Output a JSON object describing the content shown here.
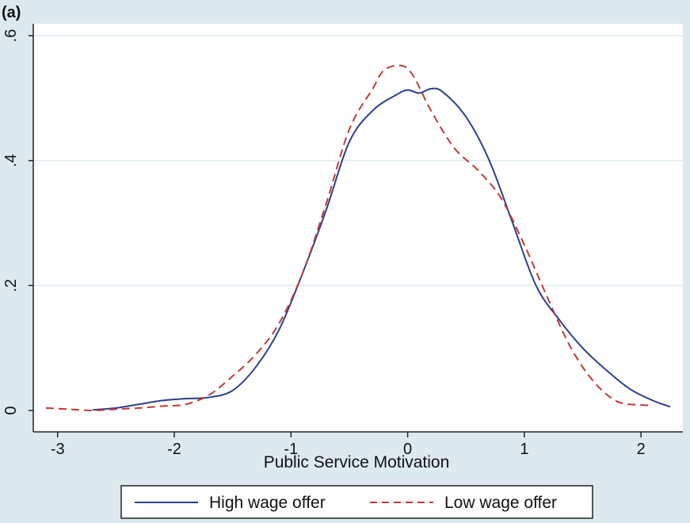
{
  "panel_label": "(a)",
  "chart_data": {
    "type": "line",
    "title": "",
    "xlabel": "Public Service Motivation",
    "ylabel": "",
    "xlim": [
      -3.1,
      2.25
    ],
    "ylim": [
      0,
      0.6
    ],
    "x_ticks": [
      -3,
      -2,
      -1,
      0,
      1,
      2
    ],
    "x_tick_labels": [
      "-3",
      "-2",
      "-1",
      "0",
      "1",
      "2"
    ],
    "y_ticks": [
      0,
      0.2,
      0.4,
      0.6
    ],
    "y_tick_labels": [
      "0",
      ".2",
      ".4",
      ".6"
    ],
    "grid": "horizontal",
    "legend_position": "bottom",
    "series": [
      {
        "name": "High wage offer",
        "color": "#2e3f8f",
        "style": "solid",
        "points": [
          [
            -2.7,
            0.001
          ],
          [
            -2.5,
            0.004
          ],
          [
            -2.3,
            0.01
          ],
          [
            -2.1,
            0.016
          ],
          [
            -1.9,
            0.019
          ],
          [
            -1.7,
            0.021
          ],
          [
            -1.5,
            0.032
          ],
          [
            -1.3,
            0.07
          ],
          [
            -1.1,
            0.13
          ],
          [
            -0.9,
            0.22
          ],
          [
            -0.7,
            0.32
          ],
          [
            -0.5,
            0.43
          ],
          [
            -0.3,
            0.48
          ],
          [
            -0.1,
            0.505
          ],
          [
            0.0,
            0.513
          ],
          [
            0.1,
            0.508
          ],
          [
            0.2,
            0.515
          ],
          [
            0.3,
            0.51
          ],
          [
            0.5,
            0.47
          ],
          [
            0.7,
            0.4
          ],
          [
            0.9,
            0.3
          ],
          [
            1.1,
            0.2
          ],
          [
            1.3,
            0.145
          ],
          [
            1.5,
            0.1
          ],
          [
            1.7,
            0.065
          ],
          [
            1.9,
            0.035
          ],
          [
            2.1,
            0.016
          ],
          [
            2.25,
            0.006
          ]
        ]
      },
      {
        "name": "Low wage offer",
        "color": "#c23a35",
        "style": "dashed",
        "points": [
          [
            -3.1,
            0.004
          ],
          [
            -2.9,
            0.002
          ],
          [
            -2.7,
            0.0
          ],
          [
            -2.5,
            0.002
          ],
          [
            -2.3,
            0.004
          ],
          [
            -2.1,
            0.007
          ],
          [
            -1.9,
            0.01
          ],
          [
            -1.7,
            0.025
          ],
          [
            -1.5,
            0.055
          ],
          [
            -1.3,
            0.09
          ],
          [
            -1.1,
            0.14
          ],
          [
            -0.9,
            0.22
          ],
          [
            -0.7,
            0.33
          ],
          [
            -0.5,
            0.45
          ],
          [
            -0.3,
            0.515
          ],
          [
            -0.2,
            0.545
          ],
          [
            -0.05,
            0.552
          ],
          [
            0.05,
            0.535
          ],
          [
            0.2,
            0.48
          ],
          [
            0.4,
            0.42
          ],
          [
            0.6,
            0.385
          ],
          [
            0.8,
            0.34
          ],
          [
            1.0,
            0.265
          ],
          [
            1.2,
            0.18
          ],
          [
            1.4,
            0.1
          ],
          [
            1.6,
            0.045
          ],
          [
            1.8,
            0.014
          ],
          [
            2.0,
            0.009
          ],
          [
            2.07,
            0.008
          ]
        ]
      }
    ]
  },
  "colors": {
    "background": "#dce9ee",
    "plot_area": "#ffffff",
    "gridline": "#dbe9ef",
    "axis": "#222222"
  }
}
